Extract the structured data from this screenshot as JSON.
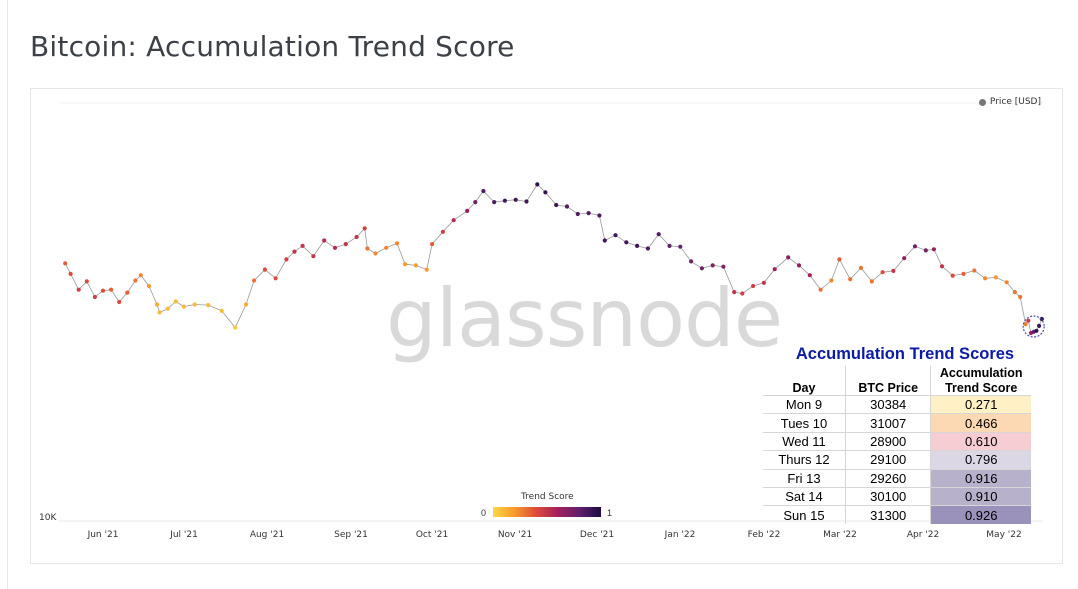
{
  "title": "Bitcoin: Accumulation Trend Score",
  "watermark": "glassnode",
  "chart_data": {
    "type": "scatter",
    "title": "Bitcoin: Accumulation Trend Score",
    "legend": {
      "entries": [
        "Price [USD]"
      ],
      "placement": "top-right",
      "color": "#777777"
    },
    "y_axis": {
      "label_visible": "10K",
      "scale": "log"
    },
    "x_tick_labels": [
      "Jun '21",
      "Jul '21",
      "Aug '21",
      "Sep '21",
      "Oct '21",
      "Nov '21",
      "Dec '21",
      "Jan '22",
      "Feb '22",
      "Mar '22",
      "Apr '22",
      "May '22"
    ],
    "colorbar": {
      "title": "Trend Score",
      "min_label": "0",
      "max_label": "1",
      "colors": [
        "#fcd846",
        "#f89b2c",
        "#dd4a3c",
        "#a51f5a",
        "#62206e",
        "#1b0c41"
      ]
    },
    "grid": false,
    "series": [
      {
        "name": "Price [USD]",
        "points": [
          [
            "2021-05-18",
            43000,
            0.35
          ],
          [
            "2021-05-20",
            40500,
            0.4
          ],
          [
            "2021-05-23",
            37000,
            0.45
          ],
          [
            "2021-05-26",
            38800,
            0.4
          ],
          [
            "2021-05-29",
            35500,
            0.45
          ],
          [
            "2021-06-01",
            36800,
            0.4
          ],
          [
            "2021-06-04",
            37000,
            0.35
          ],
          [
            "2021-06-07",
            34500,
            0.4
          ],
          [
            "2021-06-10",
            36400,
            0.35
          ],
          [
            "2021-06-13",
            39000,
            0.3
          ],
          [
            "2021-06-15",
            40200,
            0.25
          ],
          [
            "2021-06-18",
            37800,
            0.2
          ],
          [
            "2021-06-21",
            34000,
            0.15
          ],
          [
            "2021-06-22",
            32500,
            0.1
          ],
          [
            "2021-06-25",
            33200,
            0.1
          ],
          [
            "2021-06-28",
            34600,
            0.1
          ],
          [
            "2021-07-01",
            33600,
            0.1
          ],
          [
            "2021-07-05",
            34000,
            0.1
          ],
          [
            "2021-07-10",
            33900,
            0.1
          ],
          [
            "2021-07-15",
            32800,
            0.1
          ],
          [
            "2021-07-20",
            29800,
            0.05
          ],
          [
            "2021-07-24",
            34000,
            0.15
          ],
          [
            "2021-07-27",
            39000,
            0.3
          ],
          [
            "2021-07-31",
            41500,
            0.4
          ],
          [
            "2021-08-04",
            39500,
            0.4
          ],
          [
            "2021-08-08",
            44000,
            0.45
          ],
          [
            "2021-08-11",
            46000,
            0.5
          ],
          [
            "2021-08-14",
            47500,
            0.5
          ],
          [
            "2021-08-18",
            44800,
            0.5
          ],
          [
            "2021-08-22",
            49000,
            0.55
          ],
          [
            "2021-08-26",
            47000,
            0.55
          ],
          [
            "2021-08-30",
            48000,
            0.5
          ],
          [
            "2021-09-03",
            50000,
            0.5
          ],
          [
            "2021-09-06",
            52500,
            0.45
          ],
          [
            "2021-09-07",
            46800,
            0.3
          ],
          [
            "2021-09-10",
            45500,
            0.25
          ],
          [
            "2021-09-14",
            47000,
            0.25
          ],
          [
            "2021-09-18",
            48200,
            0.25
          ],
          [
            "2021-09-21",
            42800,
            0.2
          ],
          [
            "2021-09-25",
            42500,
            0.2
          ],
          [
            "2021-09-29",
            41500,
            0.2
          ],
          [
            "2021-10-01",
            48000,
            0.35
          ],
          [
            "2021-10-05",
            51500,
            0.45
          ],
          [
            "2021-10-09",
            55000,
            0.55
          ],
          [
            "2021-10-14",
            58000,
            0.65
          ],
          [
            "2021-10-17",
            61000,
            0.75
          ],
          [
            "2021-10-20",
            65000,
            0.85
          ],
          [
            "2021-10-24",
            61000,
            0.85
          ],
          [
            "2021-10-28",
            61500,
            0.9
          ],
          [
            "2021-11-01",
            61800,
            0.9
          ],
          [
            "2021-11-05",
            61200,
            0.9
          ],
          [
            "2021-11-09",
            67500,
            0.95
          ],
          [
            "2021-11-12",
            64500,
            0.95
          ],
          [
            "2021-11-16",
            60000,
            0.9
          ],
          [
            "2021-11-20",
            59500,
            0.85
          ],
          [
            "2021-11-24",
            57000,
            0.85
          ],
          [
            "2021-11-28",
            57300,
            0.85
          ],
          [
            "2021-12-02",
            56500,
            0.85
          ],
          [
            "2021-12-04",
            49000,
            0.9
          ],
          [
            "2021-12-08",
            50500,
            0.9
          ],
          [
            "2021-12-12",
            48500,
            0.9
          ],
          [
            "2021-12-16",
            47500,
            0.9
          ],
          [
            "2021-12-20",
            46800,
            0.85
          ],
          [
            "2021-12-24",
            50800,
            0.85
          ],
          [
            "2021-12-28",
            47500,
            0.8
          ],
          [
            "2022-01-01",
            47300,
            0.8
          ],
          [
            "2022-01-05",
            43500,
            0.75
          ],
          [
            "2022-01-09",
            41800,
            0.75
          ],
          [
            "2022-01-13",
            42500,
            0.7
          ],
          [
            "2022-01-17",
            42200,
            0.7
          ],
          [
            "2022-01-21",
            36500,
            0.5
          ],
          [
            "2022-01-24",
            36200,
            0.45
          ],
          [
            "2022-01-28",
            37800,
            0.45
          ],
          [
            "2022-02-01",
            38500,
            0.5
          ],
          [
            "2022-02-05",
            41600,
            0.6
          ],
          [
            "2022-02-10",
            44500,
            0.7
          ],
          [
            "2022-02-14",
            42500,
            0.65
          ],
          [
            "2022-02-18",
            40200,
            0.6
          ],
          [
            "2022-02-22",
            37000,
            0.3
          ],
          [
            "2022-02-26",
            39000,
            0.25
          ],
          [
            "2022-03-01",
            44000,
            0.35
          ],
          [
            "2022-03-05",
            39300,
            0.3
          ],
          [
            "2022-03-09",
            41900,
            0.3
          ],
          [
            "2022-03-13",
            38800,
            0.3
          ],
          [
            "2022-03-17",
            40900,
            0.4
          ],
          [
            "2022-03-21",
            41200,
            0.5
          ],
          [
            "2022-03-25",
            44300,
            0.65
          ],
          [
            "2022-03-29",
            47400,
            0.75
          ],
          [
            "2022-04-02",
            46300,
            0.75
          ],
          [
            "2022-04-05",
            46600,
            0.65
          ],
          [
            "2022-04-08",
            42300,
            0.5
          ],
          [
            "2022-04-12",
            40100,
            0.4
          ],
          [
            "2022-04-16",
            40500,
            0.35
          ],
          [
            "2022-04-20",
            41300,
            0.3
          ],
          [
            "2022-04-24",
            39500,
            0.25
          ],
          [
            "2022-04-28",
            39700,
            0.2
          ],
          [
            "2022-05-02",
            38600,
            0.25
          ],
          [
            "2022-05-05",
            36500,
            0.3
          ],
          [
            "2022-05-07",
            35500,
            0.3
          ],
          [
            "2022-05-09",
            30400,
            0.27
          ],
          [
            "2022-05-10",
            31000,
            0.47
          ],
          [
            "2022-05-11",
            28900,
            0.61
          ],
          [
            "2022-05-12",
            29100,
            0.8
          ],
          [
            "2022-05-13",
            29260,
            0.92
          ],
          [
            "2022-05-14",
            30100,
            0.91
          ],
          [
            "2022-05-15",
            31300,
            0.93
          ]
        ]
      }
    ]
  },
  "scores_table": {
    "title": "Accumulation Trend Scores",
    "headers": [
      "Day",
      "BTC Price",
      "Accumulation Trend Score"
    ],
    "rows": [
      {
        "day": "Mon 9",
        "price": "30384",
        "score": "0.271",
        "color": "#fff0c6"
      },
      {
        "day": "Tues 10",
        "price": "31007",
        "score": "0.466",
        "color": "#fcd9b2"
      },
      {
        "day": "Wed 11",
        "price": "28900",
        "score": "0.610",
        "color": "#f5cdd3"
      },
      {
        "day": "Thurs 12",
        "price": "29100",
        "score": "0.796",
        "color": "#dcd7e4"
      },
      {
        "day": "Fri 13",
        "price": "29260",
        "score": "0.916",
        "color": "#b8b1cc"
      },
      {
        "day": "Sat 14",
        "price": "30100",
        "score": "0.910",
        "color": "#b8b1cc"
      },
      {
        "day": "Sun 15",
        "price": "31300",
        "score": "0.926",
        "color": "#9a92ba"
      }
    ]
  }
}
